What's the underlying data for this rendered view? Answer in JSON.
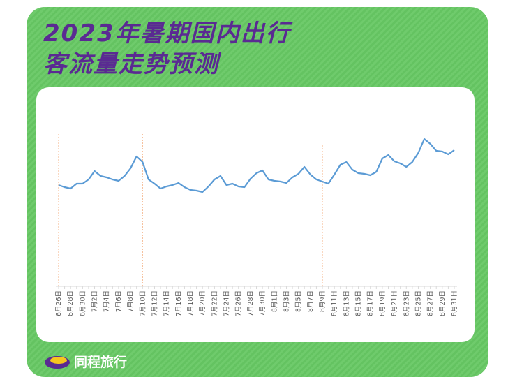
{
  "title_line1": "2023年暑期国内出行",
  "title_line2": "客流量走势预测",
  "brand": "同程旅行",
  "colors": {
    "background": "#6fcb6c",
    "title": "#5a2a92",
    "line": "#5b9bd5",
    "marker_line": "#f4b183"
  },
  "chart_data": {
    "type": "line",
    "title": "2023年暑期国内出行客流量走势预测",
    "xlabel": "",
    "ylabel": "",
    "y_axis_shown": false,
    "grid": false,
    "x": [
      "6月26日",
      "6月27日",
      "6月28日",
      "6月29日",
      "6月30日",
      "7月1日",
      "7月2日",
      "7月3日",
      "7月4日",
      "7月5日",
      "7月6日",
      "7月7日",
      "7月8日",
      "7月9日",
      "7月10日",
      "7月11日",
      "7月12日",
      "7月13日",
      "7月14日",
      "7月15日",
      "7月16日",
      "7月17日",
      "7月18日",
      "7月19日",
      "7月20日",
      "7月21日",
      "7月22日",
      "7月23日",
      "7月24日",
      "7月25日",
      "7月26日",
      "7月27日",
      "7月28日",
      "7月29日",
      "7月30日",
      "7月31日",
      "8月1日",
      "8月2日",
      "8月3日",
      "8月4日",
      "8月5日",
      "8月6日",
      "8月7日",
      "8月8日",
      "8月9日",
      "8月10日",
      "8月11日",
      "8月12日",
      "8月13日",
      "8月14日",
      "8月15日",
      "8月16日",
      "8月17日",
      "8月18日",
      "8月19日",
      "8月20日",
      "8月21日",
      "8月22日",
      "8月23日",
      "8月24日",
      "8月25日",
      "8月26日",
      "8月27日",
      "8月28日",
      "8月29日",
      "8月30日",
      "8月31日"
    ],
    "tick_labels": [
      "6月26日",
      "6月28日",
      "6月30日",
      "7月2日",
      "7月4日",
      "7月6日",
      "7月8日",
      "7月10日",
      "7月12日",
      "7月14日",
      "7月16日",
      "7月18日",
      "7月20日",
      "7月22日",
      "7月24日",
      "7月26日",
      "7月28日",
      "7月30日",
      "8月1日",
      "8月3日",
      "8月5日",
      "8月7日",
      "8月9日",
      "8月11日",
      "8月13日",
      "8月15日",
      "8月17日",
      "8月19日",
      "8月21日",
      "8月23日",
      "8月25日",
      "8月27日",
      "8月29日",
      "8月31日"
    ],
    "series": [
      {
        "values": [
          145,
          142,
          140,
          147,
          147,
          153,
          165,
          158,
          156,
          153,
          151,
          158,
          169,
          186,
          178,
          153,
          147,
          140,
          143,
          145,
          148,
          142,
          138,
          137,
          135,
          143,
          153,
          158,
          145,
          147,
          143,
          142,
          154,
          162,
          166,
          153,
          151,
          150,
          148,
          156,
          161,
          171,
          160,
          153,
          150,
          147,
          160,
          174,
          178,
          167,
          162,
          161,
          159,
          164,
          183,
          188,
          179,
          176,
          171,
          178,
          191,
          211,
          204,
          194,
          193,
          189,
          195
        ]
      }
    ],
    "ylim": [
      0,
      230
    ],
    "reference_lines": [
      "6月26日",
      "7月10日",
      "8月9日"
    ]
  }
}
